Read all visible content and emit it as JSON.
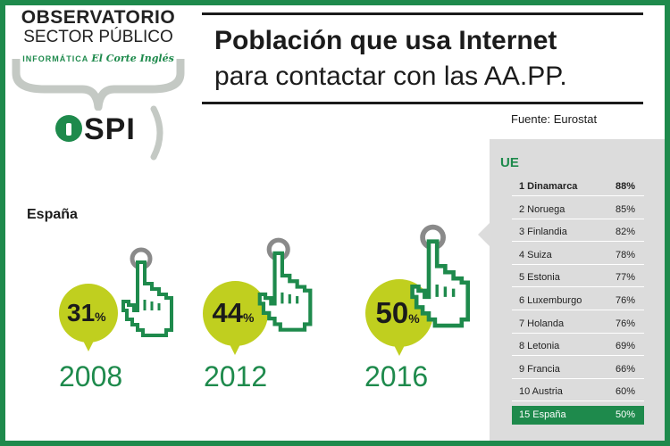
{
  "logo": {
    "line1": "OBSERVATORIO",
    "line2": "SECTOR PÚBLICO",
    "line3a": "INFORMÁTICA",
    "line3b": "El Corte Inglés",
    "ospi": "SPI"
  },
  "title": {
    "line1": "Población que usa Internet",
    "line2": "para contactar con las AA.PP."
  },
  "source": "Fuente: Eurostat",
  "colors": {
    "green": "#1e8a4c",
    "lime": "#c0cf1f",
    "panel": "#dcdcdc",
    "text": "#1b1b1b"
  },
  "icons": [
    "hand-cursor-icon",
    "target-circle-icon",
    "person-icon"
  ],
  "chart_data": [
    {
      "type": "bar",
      "title": "España",
      "categories": [
        "2008",
        "2012",
        "2016"
      ],
      "values": [
        31,
        44,
        50
      ],
      "value_suffix": "%"
    },
    {
      "type": "table",
      "title": "UE",
      "rows": [
        {
          "label": "1 Dinamarca",
          "value": "88%"
        },
        {
          "label": "2 Noruega",
          "value": "85%"
        },
        {
          "label": "3 Finlandia",
          "value": "82%"
        },
        {
          "label": "4 Suiza",
          "value": "78%"
        },
        {
          "label": "5 Estonia",
          "value": "77%"
        },
        {
          "label": "6 Luxemburgo",
          "value": "76%"
        },
        {
          "label": "7 Holanda",
          "value": "76%"
        },
        {
          "label": "8 Letonia",
          "value": "69%"
        },
        {
          "label": "9 Francia",
          "value": "66%"
        },
        {
          "label": "10 Austria",
          "value": "60%"
        },
        {
          "label": "15 España",
          "value": "50%"
        }
      ]
    }
  ]
}
